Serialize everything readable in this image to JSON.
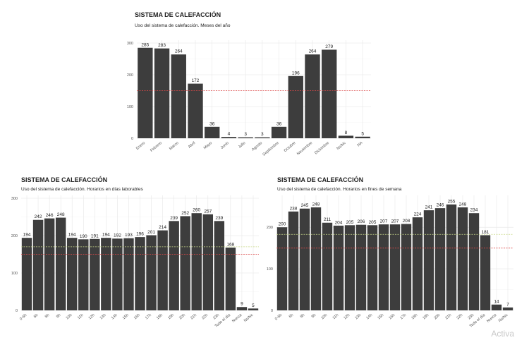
{
  "chart_data": [
    {
      "id": "months",
      "type": "bar",
      "title": "SISTEMA DE CALEFACCIÓN",
      "subtitle": "Uso del sistema de calefacción. Meses del año",
      "categories": [
        "Enero",
        "Febrero",
        "Marzo",
        "Abril",
        "Mayo",
        "Junio",
        "Julio",
        "Agosto",
        "Septiembre",
        "Octubre",
        "Noviembre",
        "Diciembre",
        "Ns/Nc",
        "NA"
      ],
      "values": [
        285,
        283,
        264,
        172,
        36,
        4,
        3,
        3,
        36,
        196,
        264,
        279,
        8,
        5
      ],
      "ylim": [
        0,
        300
      ],
      "yticks": [
        0,
        100,
        200,
        300
      ],
      "ref_lines": [
        {
          "value": 150,
          "color": "#e04848"
        }
      ],
      "colors": {
        "bar": "#3d3d3d"
      }
    },
    {
      "id": "weekdays",
      "type": "bar",
      "title": "SISTEMA DE CALEFACCIÓN",
      "subtitle": "Uso del sistema de calefacción. Horarios en días laborables",
      "categories": [
        "0-6h",
        "6h",
        "8h",
        "9h",
        "10h",
        "11h",
        "12h",
        "13h",
        "14h",
        "15h",
        "16h",
        "17h",
        "18h",
        "19h",
        "20h",
        "21h",
        "22h",
        "23h",
        "Todo el día",
        "Nunca",
        "Ns/Nc"
      ],
      "values": [
        194,
        242,
        246,
        248,
        194,
        190,
        191,
        194,
        192,
        193,
        196,
        201,
        214,
        239,
        252,
        260,
        257,
        239,
        168,
        9,
        5
      ],
      "ylim": [
        0,
        300
      ],
      "yticks": [
        0,
        100,
        200,
        300
      ],
      "ref_lines": [
        {
          "value": 150,
          "color": "#e04848"
        },
        {
          "value": 170,
          "color": "#c9d98a"
        }
      ],
      "colors": {
        "bar": "#3d3d3d"
      }
    },
    {
      "id": "weekends",
      "type": "bar",
      "title": "SISTEMA DE CALEFACCIÓN",
      "subtitle": "Uso del sistema de calefacción. Horarios en fines de semana",
      "categories": [
        "0-6h",
        "6h",
        "8h",
        "9h",
        "10h",
        "11h",
        "12h",
        "13h",
        "14h",
        "15h",
        "16h",
        "17h",
        "18h",
        "19h",
        "20h",
        "21h",
        "22h",
        "23h",
        "Todo el día",
        "Nunca",
        "Ns/Nc"
      ],
      "values": [
        200,
        238,
        245,
        248,
        211,
        204,
        205,
        206,
        205,
        207,
        207,
        208,
        224,
        241,
        246,
        255,
        248,
        234,
        181,
        14,
        7
      ],
      "ylim": [
        0,
        270
      ],
      "yticks": [
        0,
        100,
        200
      ],
      "ref_lines": [
        {
          "value": 150,
          "color": "#e04848"
        },
        {
          "value": 183,
          "color": "#c9d98a"
        }
      ],
      "colors": {
        "bar": "#3d3d3d"
      }
    }
  ],
  "watermark": "Activa"
}
